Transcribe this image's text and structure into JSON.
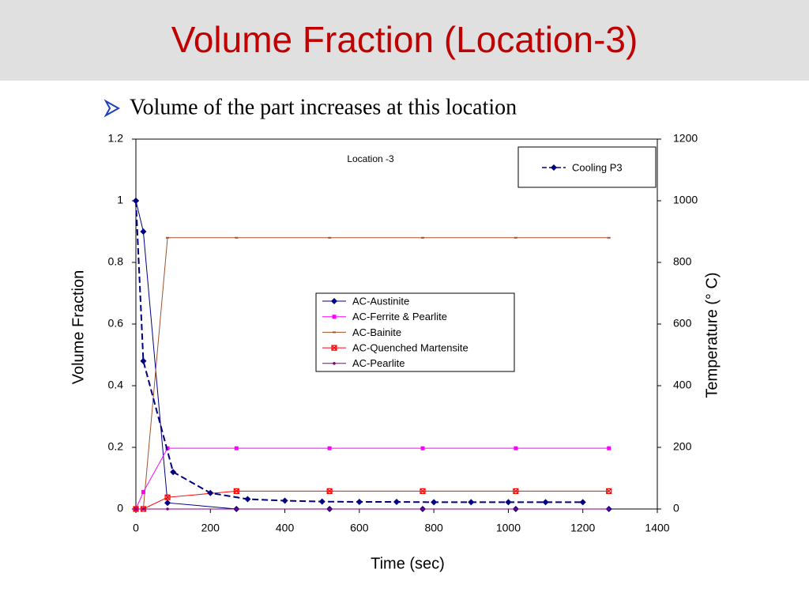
{
  "header": {
    "title": "Volume Fraction (Location-3)"
  },
  "bullet": "Volume of the part increases at this location",
  "chart_data": {
    "type": "line",
    "annotation": "Location -3",
    "x_label": "Time (sec)",
    "y_label": "Volume Fraction",
    "y2_label": "Temperature (° C)",
    "xlim": [
      0,
      1400
    ],
    "xticks": [
      0,
      200,
      400,
      600,
      800,
      1000,
      1200,
      1400
    ],
    "ylim": [
      0,
      1.2
    ],
    "yticks": [
      0,
      0.2,
      0.4,
      0.6,
      0.8,
      1,
      1.2
    ],
    "y2lim": [
      0,
      1200
    ],
    "y2ticks": [
      0,
      200,
      400,
      600,
      800,
      1000,
      1200
    ],
    "grid": false,
    "series": [
      {
        "name": "AC-Austinite",
        "color": "#000080",
        "marker": "diamond",
        "x": [
          0,
          20,
          85,
          270,
          520,
          770,
          1020,
          1270
        ],
        "values": [
          1,
          0.9,
          0.02,
          0,
          0,
          0,
          0,
          0
        ]
      },
      {
        "name": "AC-Ferrite & Pearlite",
        "color": "#ff00ff",
        "marker": "square",
        "x": [
          0,
          20,
          85,
          270,
          520,
          770,
          1020,
          1270
        ],
        "values": [
          0,
          0.055,
          0.197,
          0.197,
          0.197,
          0.197,
          0.197,
          0.197
        ]
      },
      {
        "name": "AC-Bainite",
        "color": "#a0522d",
        "marker": "dash",
        "x": [
          0,
          20,
          85,
          270,
          520,
          770,
          1020,
          1270
        ],
        "values": [
          0,
          0,
          0.88,
          0.88,
          0.88,
          0.88,
          0.88,
          0.88
        ]
      },
      {
        "name": "AC-Quenched Martensite",
        "color": "#ff0000",
        "marker": "xsquare",
        "x": [
          0,
          20,
          85,
          270,
          520,
          770,
          1020,
          1270
        ],
        "values": [
          0,
          0,
          0.038,
          0.058,
          0.058,
          0.058,
          0.058,
          0.058
        ]
      },
      {
        "name": "AC-Pearlite",
        "color": "#800080",
        "marker": "dot",
        "x": [
          0,
          20,
          85,
          270,
          520,
          770,
          1020,
          1270
        ],
        "values": [
          0,
          0,
          0,
          0,
          0,
          0,
          0,
          0
        ]
      },
      {
        "name": "Cooling P3",
        "color": "#000080",
        "marker": "diamond",
        "dashed": true,
        "axis": "y2",
        "x": [
          0,
          20,
          100,
          200,
          300,
          400,
          500,
          600,
          700,
          800,
          900,
          1000,
          1100,
          1200
        ],
        "values": [
          1000,
          480,
          120,
          52,
          32,
          27,
          24,
          23,
          23,
          22,
          22,
          22,
          22,
          22
        ]
      }
    ]
  }
}
